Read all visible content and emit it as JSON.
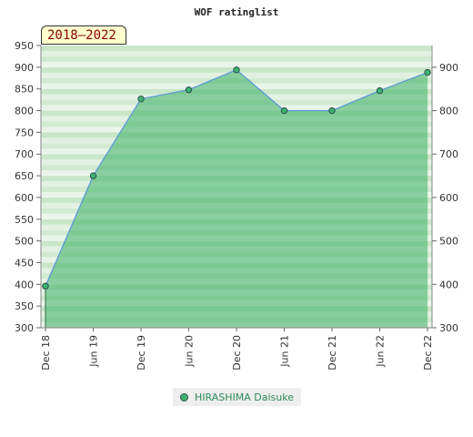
{
  "chart_data": {
    "type": "area",
    "title": "WOF ratinglist",
    "period_label": "2018–2022",
    "categories": [
      "Dec 18",
      "Jun 19",
      "Dec 19",
      "Jun 20",
      "Dec 20",
      "Jun 21",
      "Dec 21",
      "Jun 22",
      "Dec 22"
    ],
    "series": [
      {
        "name": "HIRASHIMA Daisuke",
        "values": [
          396,
          650,
          827,
          848,
          894,
          800,
          800,
          846,
          888
        ]
      }
    ],
    "ylim": [
      300,
      950
    ],
    "left_ticks": [
      300,
      350,
      400,
      450,
      500,
      550,
      600,
      650,
      700,
      750,
      800,
      850,
      900,
      950
    ],
    "right_ticks": [
      300,
      400,
      500,
      600,
      700,
      800,
      900
    ],
    "legend_position": "bottom-center",
    "colors": {
      "line": "#5a9bd5",
      "marker": "#3cb371",
      "legend_text": "#2e8b57"
    }
  }
}
